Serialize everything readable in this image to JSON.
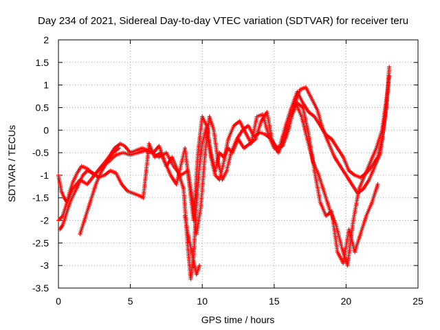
{
  "chart_data": {
    "type": "scatter",
    "title": "Day 234 of 2021, Sidereal Day-to-day VTEC variation (SDTVAR) for receiver teru",
    "xlabel": "GPS time / hours",
    "ylabel": "SDTVAR / TECUs",
    "xlim": [
      0,
      25
    ],
    "ylim": [
      -3.5,
      2
    ],
    "xticks": [
      "0",
      "5",
      "10",
      "15",
      "20",
      "25"
    ],
    "yticks": [
      "2",
      "1.5",
      "1",
      "0.5",
      "0",
      "-0.5",
      "-1",
      "-1.5",
      "-2",
      "-2.5",
      "-3",
      "-3.5"
    ],
    "grid": true,
    "marker": "+",
    "series_color": "#ff0000",
    "series": [
      {
        "x": [
          0,
          0.2,
          0.4,
          0.6,
          0.8,
          1.0,
          1.3,
          1.6,
          2.0,
          2.5,
          3.0,
          3.5,
          3.9,
          4.3,
          4.6,
          5.0,
          5.4,
          5.8,
          6.2,
          6.6,
          7.0,
          7.4,
          7.8,
          8.2,
          8.5,
          8.8,
          9.1,
          9.4,
          9.7,
          10.0,
          10.3,
          10.6,
          10.9,
          11.2,
          11.5,
          11.8,
          12.2,
          12.6,
          13.0,
          13.4,
          13.8,
          14.2,
          14.6,
          15.0,
          15.4,
          15.8,
          16.2,
          16.6,
          17.0,
          17.4,
          17.8,
          18.2,
          18.6,
          19.0,
          19.4,
          19.8,
          20.2,
          20.6,
          21.0,
          21.4,
          21.8,
          22.2,
          22.5,
          22.8,
          23.0
        ],
        "y": [
          -1.0,
          -1.35,
          -1.5,
          -1.6,
          -1.35,
          -1.15,
          -0.95,
          -0.8,
          -0.85,
          -1.0,
          -0.8,
          -0.6,
          -0.4,
          -0.3,
          -0.35,
          -0.5,
          -0.45,
          -0.4,
          -0.45,
          -0.5,
          -0.35,
          -0.7,
          -1.0,
          -1.2,
          -0.8,
          -0.4,
          -1.2,
          -2.0,
          -0.5,
          0.3,
          0.1,
          -0.6,
          -1.0,
          -1.1,
          -0.7,
          -0.2,
          0.1,
          0.2,
          -0.05,
          -0.3,
          0.3,
          0.35,
          -0.1,
          -0.4,
          -0.35,
          0.1,
          0.5,
          0.85,
          0.6,
          0.4,
          0.3,
          0.1,
          -0.1,
          -0.2,
          -0.4,
          -0.6,
          -0.9,
          -1.0,
          -1.05,
          -0.95,
          -0.8,
          -0.6,
          -0.2,
          0.5,
          1.4
        ]
      },
      {
        "x": [
          0,
          0.3,
          0.6,
          1.0,
          1.5,
          2.0,
          2.5,
          3.0,
          3.5,
          4.0,
          4.5,
          5.0,
          5.5,
          6.0,
          6.5,
          7.0,
          7.5,
          8.0,
          8.5,
          9.0,
          9.3,
          9.6,
          9.9,
          10.2,
          10.5,
          10.8,
          11.1,
          11.4,
          11.7,
          12.0,
          12.4,
          12.8,
          13.2,
          13.6,
          14.0,
          14.4,
          14.8,
          15.2,
          15.6,
          16.0,
          16.4,
          16.8,
          17.2,
          17.6,
          18.0,
          18.4,
          18.8,
          19.2,
          19.6,
          20.0,
          20.4,
          20.8,
          21.2,
          21.6,
          22.0,
          22.4,
          22.7,
          23.0
        ],
        "y": [
          -2.0,
          -1.9,
          -1.6,
          -1.3,
          -1.1,
          -1.2,
          -1.0,
          -0.8,
          -0.7,
          -0.55,
          -0.5,
          -0.55,
          -0.5,
          -0.45,
          -0.5,
          -0.6,
          -0.5,
          -0.8,
          -1.0,
          -0.9,
          -1.5,
          -2.3,
          -1.7,
          -0.5,
          0.3,
          0.0,
          -0.7,
          -1.1,
          -0.9,
          -0.5,
          -0.2,
          0.0,
          0.1,
          -0.15,
          -0.05,
          -0.1,
          -0.2,
          -0.4,
          -0.35,
          0.0,
          0.55,
          0.9,
          0.95,
          0.7,
          0.45,
          0.0,
          -0.3,
          -0.6,
          -0.8,
          -1.0,
          -1.2,
          -1.4,
          -1.3,
          -1.1,
          -0.8,
          -0.5,
          0.3,
          1.2
        ]
      },
      {
        "x": [
          0.1,
          0.3,
          0.5,
          0.8,
          1.1,
          1.4,
          1.7,
          2.0,
          2.4,
          2.8,
          3.2,
          3.6,
          4.0,
          4.4,
          4.8,
          5.2,
          5.6,
          5.9,
          6.3,
          6.7,
          7.1,
          7.5,
          7.9,
          8.3,
          8.7,
          9.0,
          9.2,
          9.4,
          9.6,
          9.8,
          10.0,
          10.3,
          10.6,
          10.9,
          11.2,
          11.5,
          11.8,
          12.1,
          12.5,
          12.9,
          13.3,
          13.7,
          14.1,
          14.5,
          14.9,
          15.3,
          15.7,
          16.1,
          16.5,
          16.9,
          17.3,
          17.7,
          18.1,
          18.5,
          18.9,
          19.3,
          19.7,
          20.1,
          20.5,
          20.9,
          21.3,
          21.7,
          22.1,
          22.5,
          22.9
        ],
        "y": [
          -2.2,
          -2.1,
          -1.9,
          -1.6,
          -1.4,
          -1.2,
          -1.0,
          -0.9,
          -0.95,
          -1.05,
          -1.0,
          -0.9,
          -0.95,
          -1.2,
          -1.35,
          -1.4,
          -1.45,
          -1.5,
          -0.3,
          -0.6,
          -0.5,
          -0.8,
          -0.6,
          -0.9,
          -1.3,
          -2.6,
          -3.3,
          -2.8,
          -1.6,
          -0.8,
          -0.3,
          0.1,
          -0.5,
          -0.9,
          -0.5,
          -0.6,
          -0.4,
          -0.5,
          -0.2,
          -0.4,
          -0.3,
          -0.2,
          0.2,
          0.4,
          -0.3,
          -0.5,
          -0.2,
          0.3,
          0.6,
          0.3,
          -0.2,
          -0.7,
          -1.0,
          -1.4,
          -1.8,
          -2.1,
          -2.6,
          -3.0,
          -2.0,
          -1.3,
          -1.0,
          -0.7,
          -0.4,
          0.0,
          0.9
        ]
      },
      {
        "x": [
          1.5,
          1.7,
          2.0,
          2.3,
          2.6,
          3.0,
          3.4,
          3.8,
          4.2,
          8.8,
          9.0,
          9.2,
          9.4,
          9.6,
          9.8,
          16.2,
          16.6,
          17.0,
          17.4,
          17.8,
          18.2,
          18.6,
          19.0,
          19.4,
          19.8,
          20.2,
          20.6,
          21.0,
          21.4,
          21.8,
          22.2
        ],
        "y": [
          -2.3,
          -2.1,
          -1.8,
          -1.5,
          -1.2,
          -0.9,
          -0.7,
          -0.5,
          -0.4,
          -1.9,
          -2.3,
          -2.6,
          -2.9,
          -3.2,
          -3.0,
          0.3,
          0.6,
          0.5,
          -0.1,
          -0.9,
          -1.6,
          -1.9,
          -1.8,
          -2.7,
          -2.95,
          -2.2,
          -2.7,
          -2.3,
          -1.9,
          -1.6,
          -1.2
        ]
      }
    ]
  }
}
